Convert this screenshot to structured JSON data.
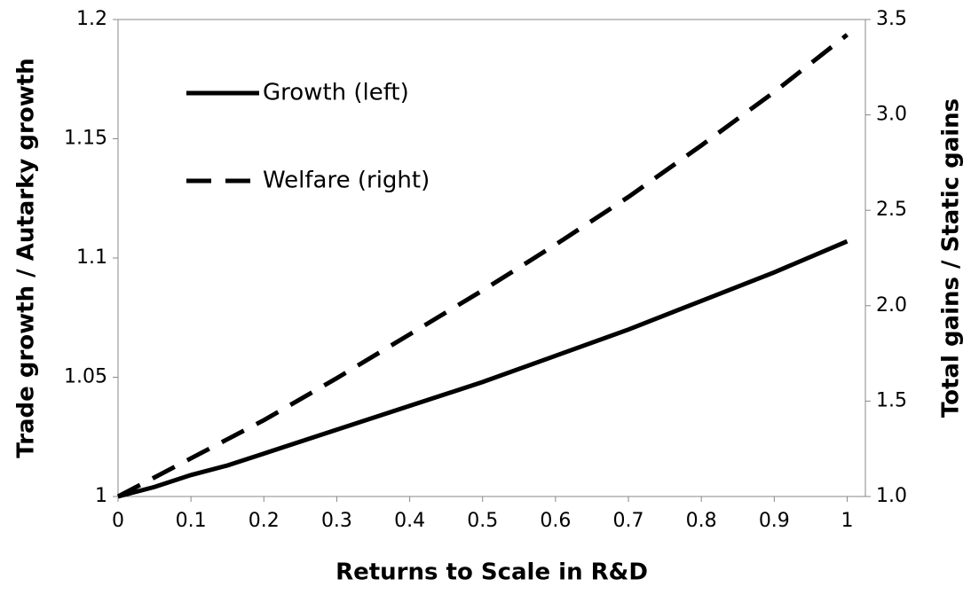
{
  "chart_data": {
    "type": "line",
    "xlabel": "Returns to Scale in R&D",
    "ylabel": "Trade growth / Autarky growth",
    "y2label": "Total gains / Static gains",
    "x": [
      0,
      0.05,
      0.1,
      0.15,
      0.2,
      0.3,
      0.4,
      0.5,
      0.6,
      0.7,
      0.8,
      0.9,
      1
    ],
    "series": [
      {
        "name": "Growth (left)",
        "color": "#000000",
        "dash": false,
        "axis": "y",
        "values": [
          1,
          1.004,
          1.009,
          1.013,
          1.018,
          1.028,
          1.038,
          1.048,
          1.059,
          1.07,
          1.082,
          1.094,
          1.107
        ]
      },
      {
        "name": "Welfare (right)",
        "color": "#000000",
        "dash": true,
        "axis": "y2",
        "values": [
          1,
          1.1,
          1.2,
          1.3,
          1.4,
          1.62,
          1.85,
          2.08,
          2.32,
          2.57,
          2.84,
          3.12,
          3.42
        ]
      }
    ],
    "xlim": [
      0,
      1.025
    ],
    "xticks": [
      0,
      0.1,
      0.2,
      0.3,
      0.4,
      0.5,
      0.6,
      0.7,
      0.8,
      0.9,
      1
    ],
    "ylim": [
      1,
      1.2
    ],
    "yticks": [
      1,
      1.05,
      1.1,
      1.15,
      1.2
    ],
    "y2lim": [
      1,
      3.5
    ],
    "y2ticks": [
      {
        "value": 1,
        "label": "1.0"
      },
      {
        "value": 1.5,
        "label": "1.5"
      },
      {
        "value": 2,
        "label": "2.0"
      },
      {
        "value": 2.5,
        "label": "2.5"
      },
      {
        "value": 3,
        "label": "3.0"
      },
      {
        "value": 3.5,
        "label": "3.5"
      }
    ]
  }
}
